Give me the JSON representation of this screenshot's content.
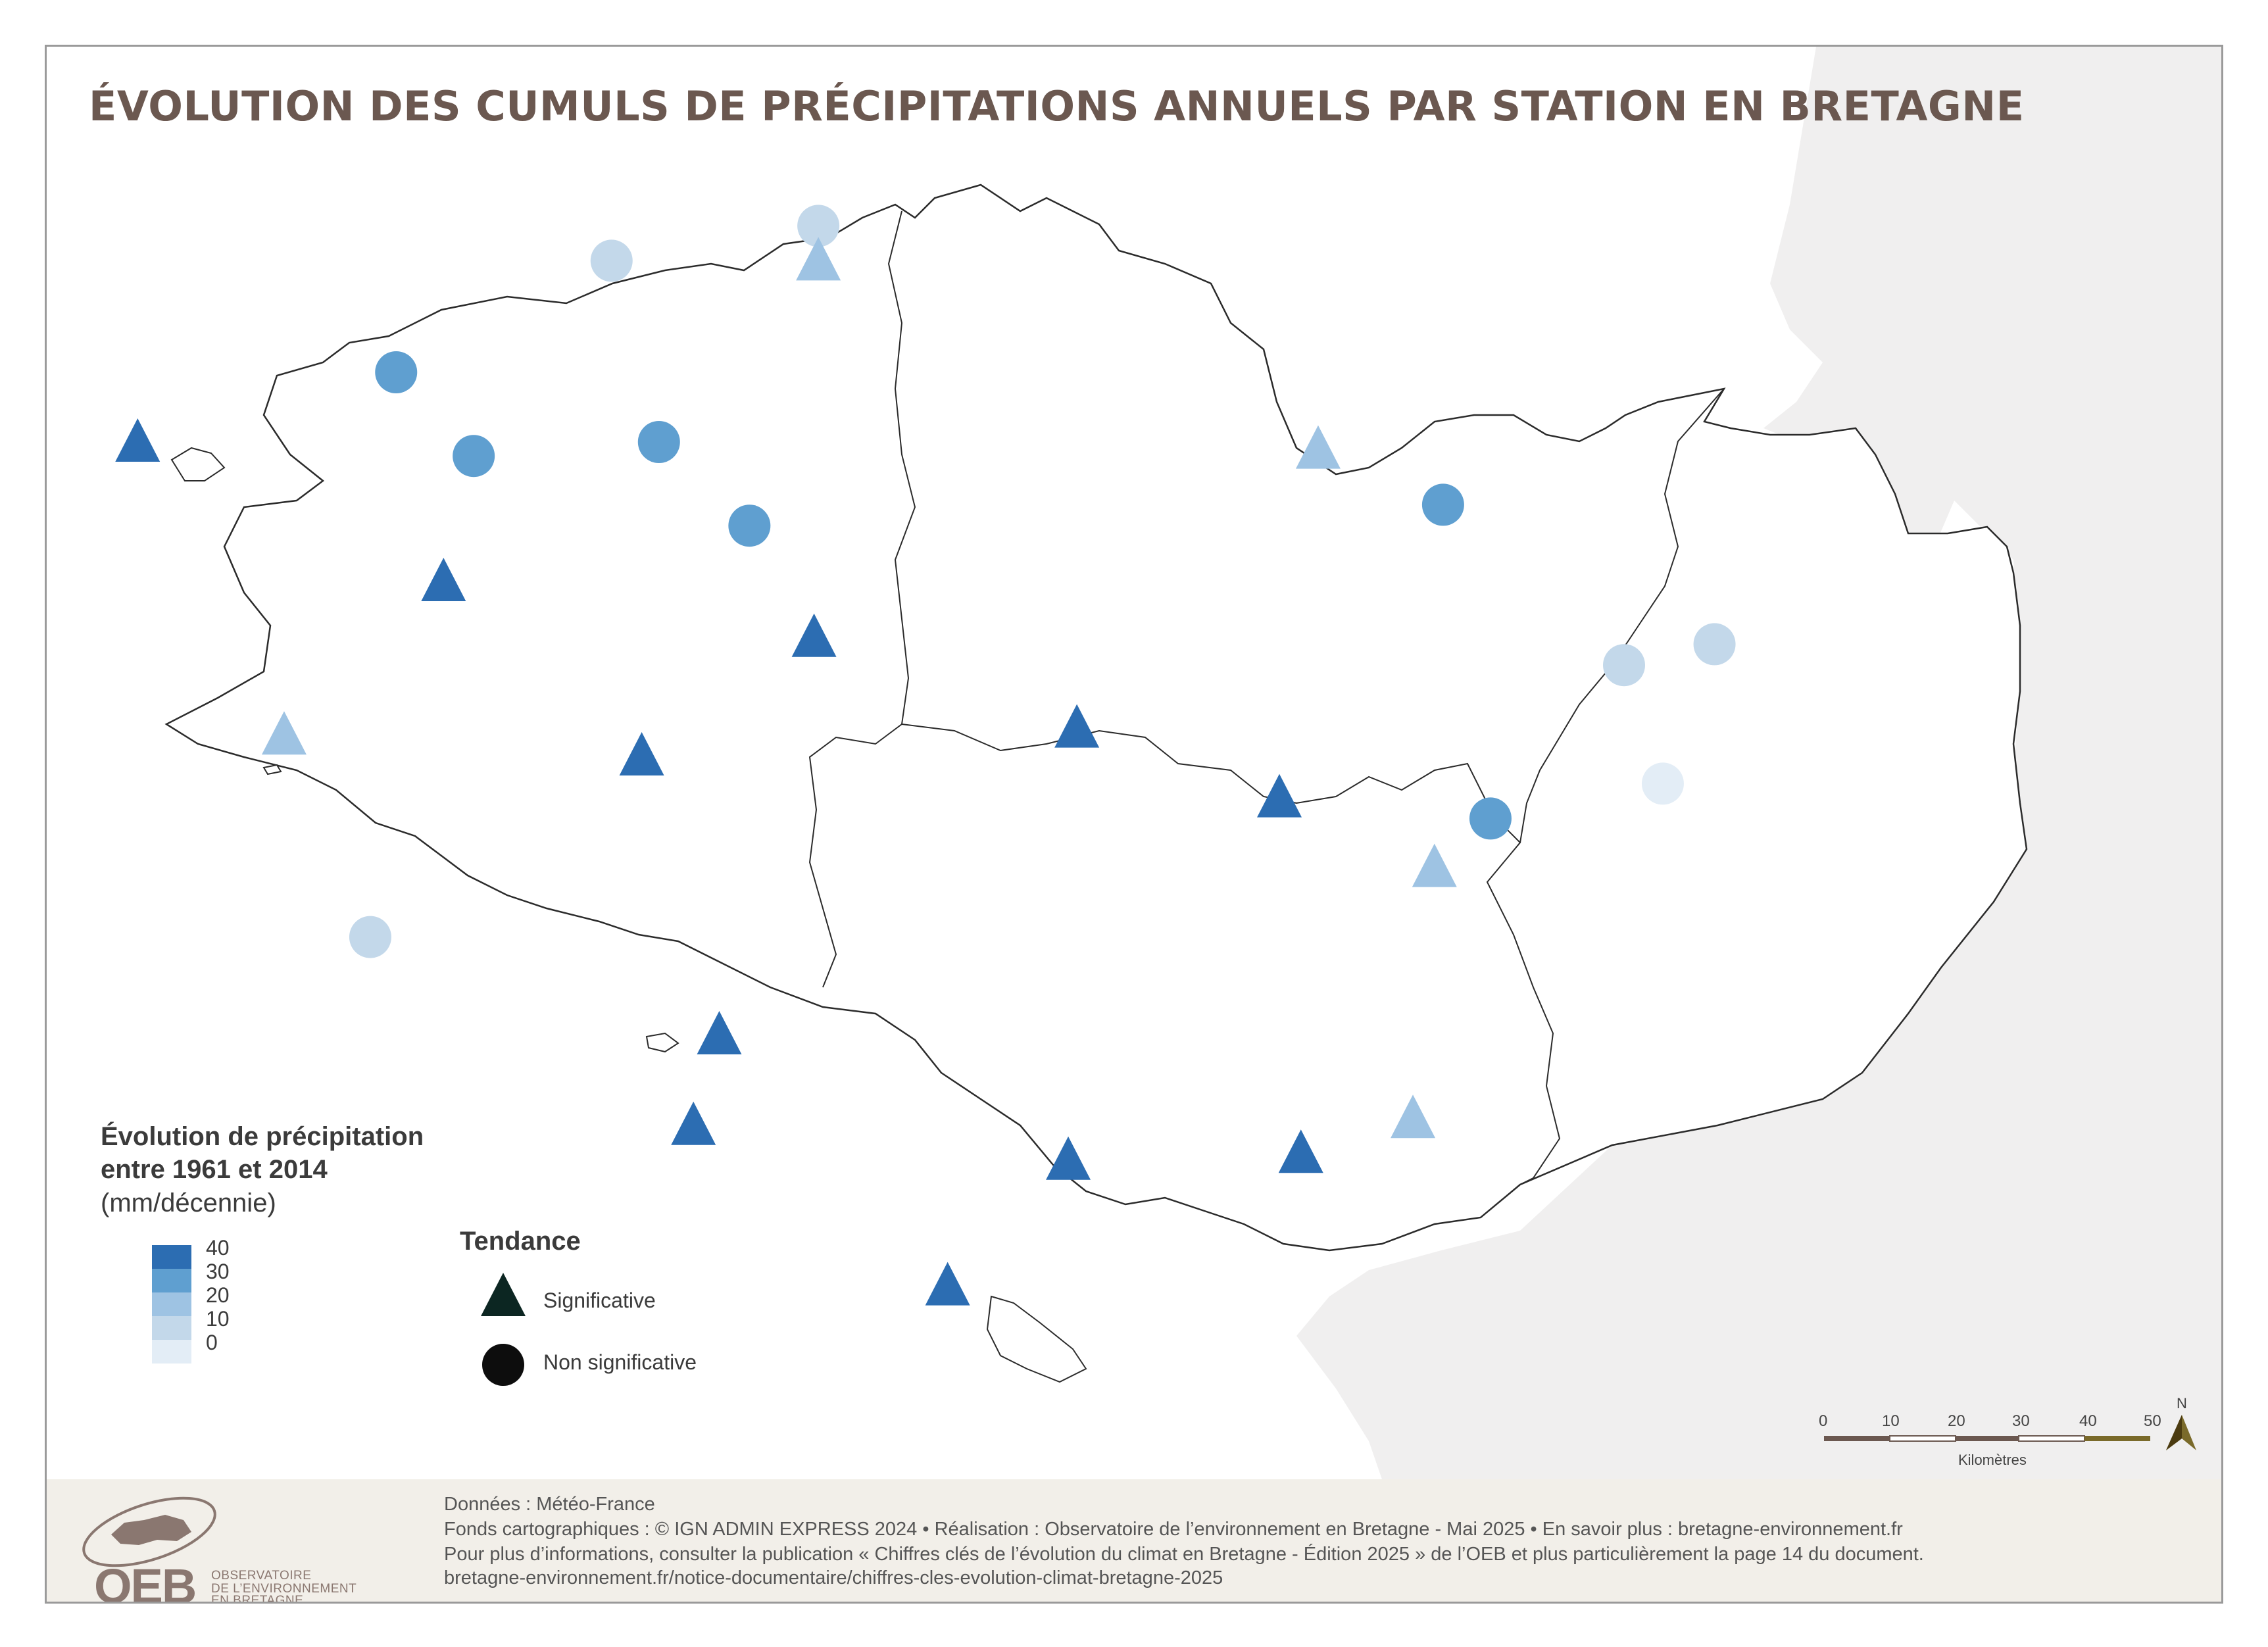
{
  "title": "ÉVOLUTION DES CUMULS DE PRÉCIPITATIONS ANNUELS PAR STATION  EN BRETAGNE",
  "colors": {
    "class_40": "#2c6db2",
    "class_30": "#5f9fd0",
    "class_20": "#9ec3e3",
    "class_10": "#c3d8ea",
    "class_0": "#e3edf6",
    "outline": "#2b2b2b",
    "neighbor_land": "#f0efef",
    "footer_bg": "#f2efe9",
    "title": "#6b5850"
  },
  "legend": {
    "title_line1": "Évolution de précipitation",
    "title_line2": "entre 1961 et 2014",
    "unit": "(mm/décennie)",
    "ramp": [
      "40",
      "30",
      "20",
      "10",
      "0"
    ],
    "trend_title": "Tendance",
    "significant": "Significative",
    "not_significant": "Non significative"
  },
  "stations": [
    {
      "shape": "triangle",
      "class": 40,
      "lon": -5.05,
      "lat": 48.47
    },
    {
      "shape": "circle",
      "class": 30,
      "lon": -4.45,
      "lat": 48.57
    },
    {
      "shape": "circle",
      "class": 10,
      "lon": -3.95,
      "lat": 48.73
    },
    {
      "shape": "circle",
      "class": 10,
      "lon": -3.47,
      "lat": 48.78
    },
    {
      "shape": "triangle",
      "class": 20,
      "lon": -3.47,
      "lat": 48.73
    },
    {
      "shape": "circle",
      "class": 30,
      "lon": -4.27,
      "lat": 48.45
    },
    {
      "shape": "circle",
      "class": 30,
      "lon": -3.84,
      "lat": 48.47
    },
    {
      "shape": "circle",
      "class": 30,
      "lon": -3.63,
      "lat": 48.35
    },
    {
      "shape": "triangle",
      "class": 40,
      "lon": -4.34,
      "lat": 48.27
    },
    {
      "shape": "triangle",
      "class": 40,
      "lon": -3.48,
      "lat": 48.19
    },
    {
      "shape": "triangle",
      "class": 20,
      "lon": -4.71,
      "lat": 48.05
    },
    {
      "shape": "triangle",
      "class": 40,
      "lon": -3.88,
      "lat": 48.02
    },
    {
      "shape": "circle",
      "class": 10,
      "lon": -4.51,
      "lat": 47.76
    },
    {
      "shape": "triangle",
      "class": 40,
      "lon": -3.7,
      "lat": 47.62
    },
    {
      "shape": "triangle",
      "class": 40,
      "lon": -3.76,
      "lat": 47.49
    },
    {
      "shape": "triangle",
      "class": 40,
      "lon": -2.89,
      "lat": 47.44
    },
    {
      "shape": "triangle",
      "class": 40,
      "lon": -3.17,
      "lat": 47.26
    },
    {
      "shape": "triangle",
      "class": 40,
      "lon": -2.87,
      "lat": 48.06
    },
    {
      "shape": "triangle",
      "class": 20,
      "lon": -2.31,
      "lat": 48.46
    },
    {
      "shape": "circle",
      "class": 30,
      "lon": -2.02,
      "lat": 48.38
    },
    {
      "shape": "triangle",
      "class": 40,
      "lon": -2.4,
      "lat": 47.96
    },
    {
      "shape": "triangle",
      "class": 20,
      "lon": -2.04,
      "lat": 47.86
    },
    {
      "shape": "circle",
      "class": 30,
      "lon": -1.91,
      "lat": 47.93
    },
    {
      "shape": "circle",
      "class": 10,
      "lon": -1.6,
      "lat": 48.15
    },
    {
      "shape": "circle",
      "class": 10,
      "lon": -1.39,
      "lat": 48.18
    },
    {
      "shape": "circle",
      "class": 0,
      "lon": -1.51,
      "lat": 47.98
    },
    {
      "shape": "triangle",
      "class": 20,
      "lon": -2.09,
      "lat": 47.5
    },
    {
      "shape": "triangle",
      "class": 40,
      "lon": -2.35,
      "lat": 47.45
    }
  ],
  "scale": {
    "ticks": [
      "0",
      "10",
      "20",
      "30",
      "40",
      "50"
    ],
    "unit": "Kilomètres",
    "north": "N"
  },
  "footer": {
    "line1": "Données : Météo-France",
    "line2": "Fonds cartographiques : © IGN ADMIN EXPRESS 2024 • Réalisation : Observatoire de l’environnement en Bretagne - Mai 2025 •  En savoir plus : bretagne-environnement.fr",
    "line3": "Pour plus d’informations, consulter la publication « Chiffres clés de l’évolution du climat en Bretagne - Édition 2025 » de l’OEB et plus particulièrement la page 14 du document.",
    "line4": "bretagne-environnement.fr/notice-documentaire/chiffres-cles-evolution-climat-bretagne-2025",
    "logo": "OEB",
    "logo_sub1": "OBSERVATOIRE",
    "logo_sub2": "DE L’ENVIRONNEMENT",
    "logo_sub3": "EN BRETAGNE"
  }
}
